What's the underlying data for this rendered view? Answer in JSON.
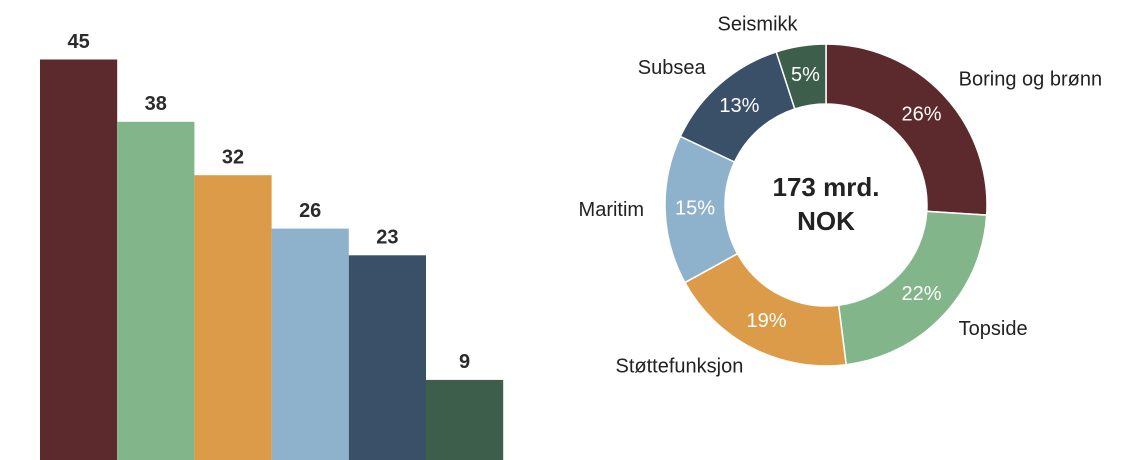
{
  "chart_data": [
    {
      "type": "bar",
      "categories": [
        null,
        null,
        null,
        null,
        null,
        null
      ],
      "values": [
        45,
        38,
        32,
        26,
        23,
        9
      ],
      "colors": [
        "#5c2a2c",
        "#82b68a",
        "#dc9b48",
        "#8fb2cc",
        "#3a5068",
        "#3d5e4a"
      ]
    },
    {
      "type": "donut",
      "center_text": [
        "173 mrd.",
        "NOK"
      ],
      "categories": [
        "Boring og brønn",
        "Topside",
        "Støttefunksjon",
        "Maritim",
        "Subsea",
        "Seismikk"
      ],
      "values": [
        26,
        22,
        19,
        15,
        13,
        5
      ],
      "value_labels": [
        "26%",
        "22%",
        "19%",
        "15%",
        "13%",
        "5%"
      ],
      "colors": [
        "#5c2a2c",
        "#82b68a",
        "#dc9b48",
        "#8fb2cc",
        "#3a5068",
        "#3d5e4a"
      ]
    }
  ]
}
